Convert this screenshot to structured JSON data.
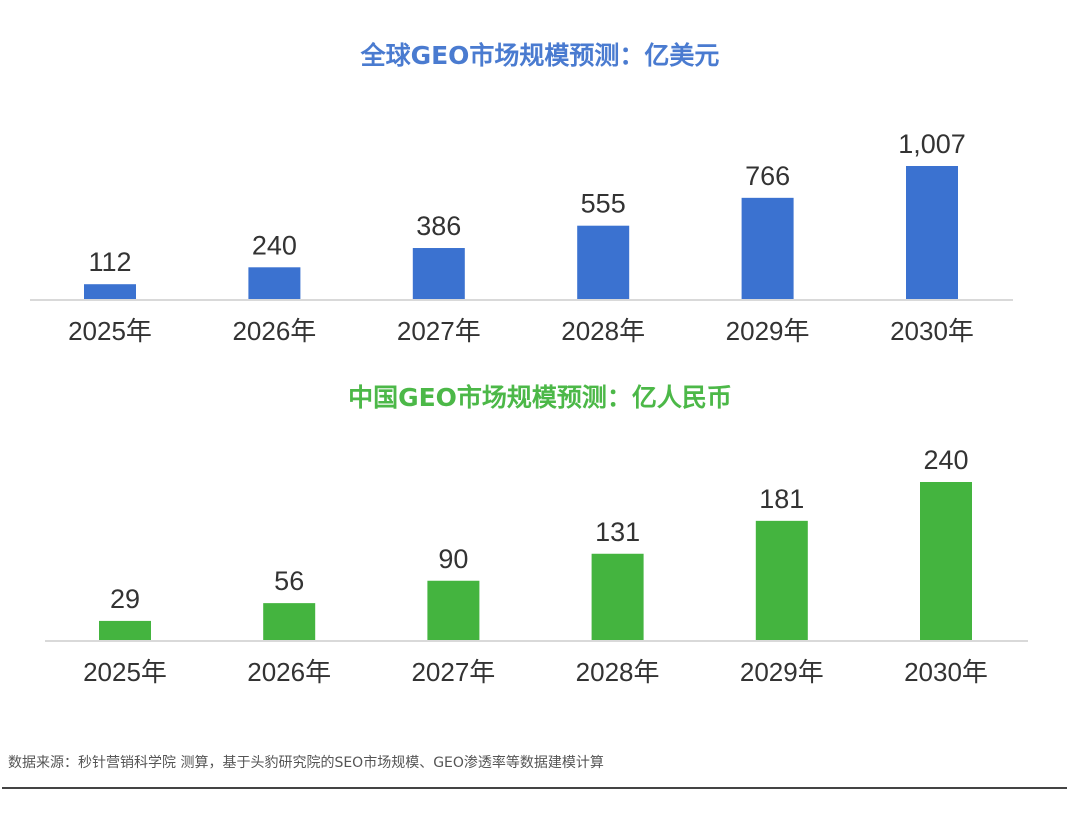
{
  "chart_data": [
    {
      "type": "bar",
      "title": "全球GEO市场规模预测：亿美元",
      "categories": [
        "2025年",
        "2026年",
        "2027年",
        "2028年",
        "2029年",
        "2030年"
      ],
      "values": [
        112,
        240,
        386,
        555,
        766,
        1007
      ],
      "data_labels": [
        "112",
        "240",
        "386",
        "555",
        "766",
        "1,007"
      ],
      "color": "#3b72d0",
      "title_color": "#4a7bd0",
      "grid": false
    },
    {
      "type": "bar",
      "title": "中国GEO市场规模预测：亿人民币",
      "categories": [
        "2025年",
        "2026年",
        "2027年",
        "2028年",
        "2029年",
        "2030年"
      ],
      "values": [
        29,
        56,
        90,
        131,
        181,
        240
      ],
      "data_labels": [
        "29",
        "56",
        "90",
        "131",
        "181",
        "240"
      ],
      "color": "#44b43f",
      "title_color": "#4cb848",
      "grid": false
    }
  ],
  "footer": {
    "source": "数据来源：秒针营销科学院 测算，基于头豹研究院的SEO市场规模、GEO渗透率等数据建模计算"
  }
}
